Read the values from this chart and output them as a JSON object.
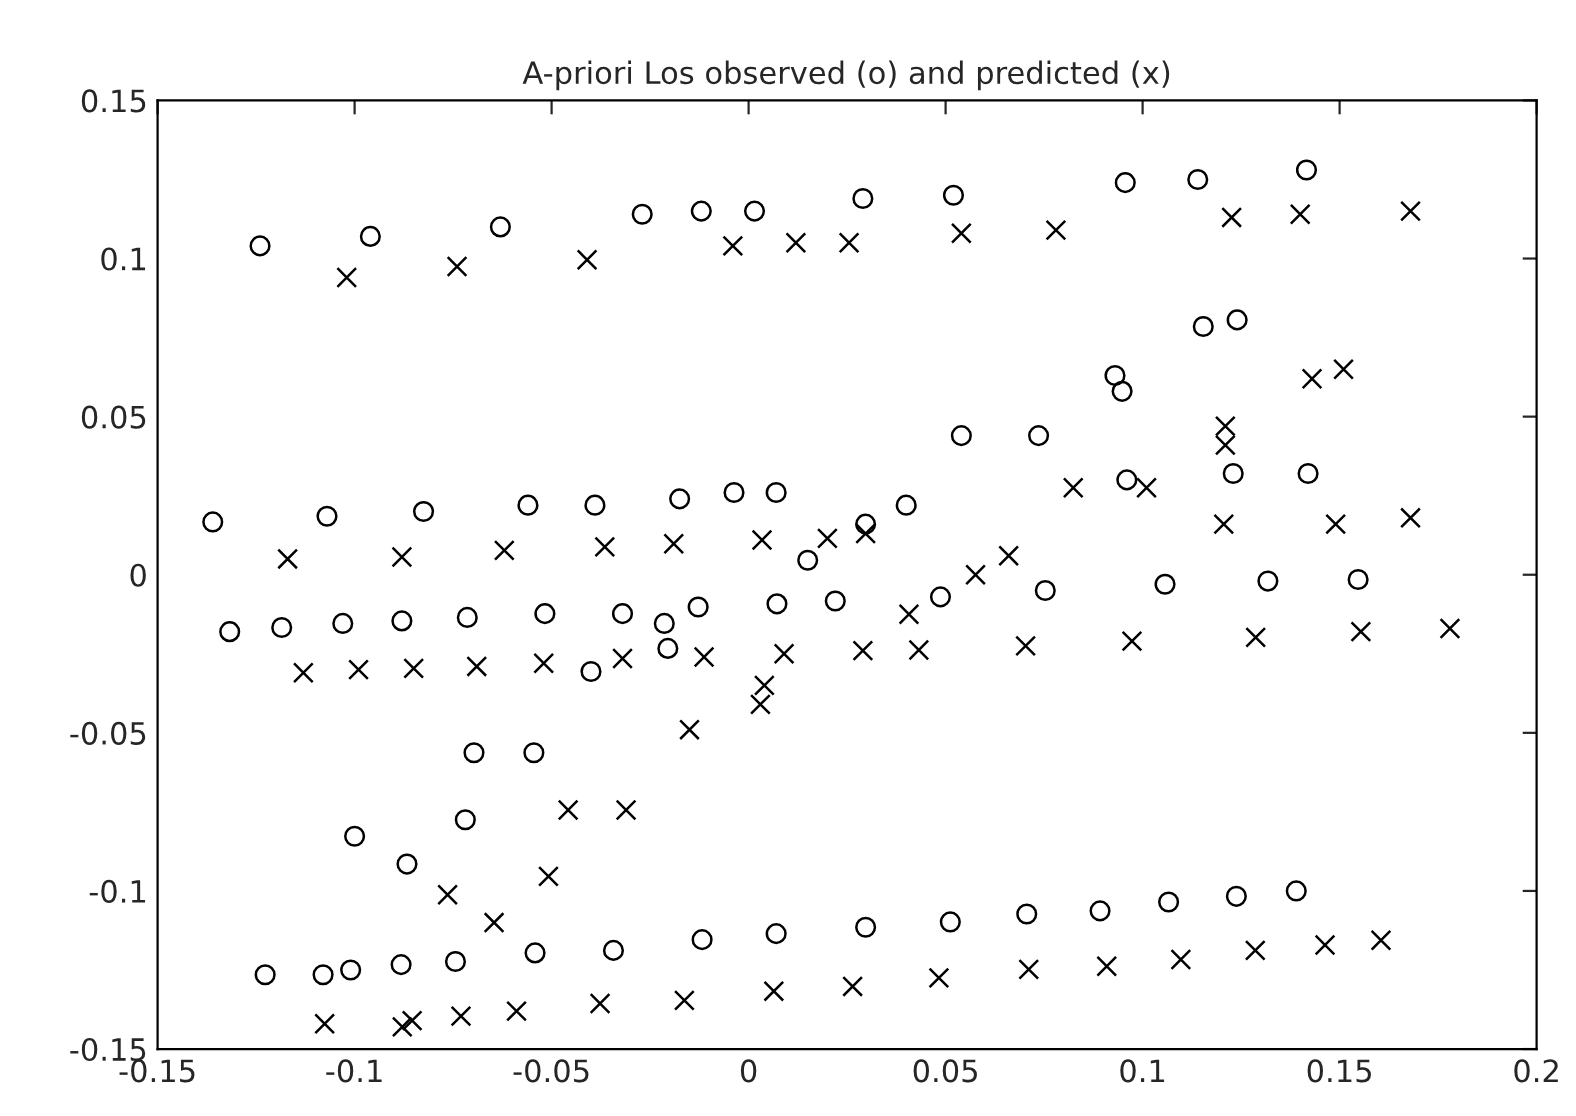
{
  "chart_data": {
    "type": "scatter",
    "title": "A-priori Los observed (o) and predicted (x)",
    "xlim": [
      -0.15,
      0.2
    ],
    "ylim": [
      -0.15,
      0.15
    ],
    "xticks": [
      -0.15,
      -0.1,
      -0.05,
      0,
      0.05,
      0.1,
      0.15,
      0.2
    ],
    "yticks": [
      -0.15,
      -0.1,
      -0.05,
      0,
      0.05,
      0.1,
      0.15
    ],
    "grid": false,
    "series": [
      {
        "color": "#000000",
        "marker": "circle",
        "x": [
          -0.124,
          -0.096,
          -0.063,
          -0.027,
          -0.012,
          0.0015,
          0.029,
          0.052,
          0.0956,
          0.114,
          0.1416,
          0.1154,
          0.124,
          0.093,
          0.0948,
          0.054,
          0.0736,
          0.123,
          0.142,
          0.096,
          0.04,
          0.0297,
          0.015,
          -0.136,
          -0.107,
          -0.0825,
          -0.056,
          -0.039,
          -0.0175,
          -0.0037,
          0.007,
          -0.1317,
          -0.1185,
          -0.103,
          -0.088,
          -0.0714,
          -0.0517,
          -0.032,
          -0.0214,
          -0.0128,
          0.0072,
          -0.04,
          -0.0205,
          0.022,
          0.0487,
          0.0753,
          0.1057,
          0.1318,
          0.1547,
          -0.0697,
          -0.0545,
          -0.0719,
          -0.1,
          -0.0867,
          -0.1227,
          -0.108,
          -0.101,
          -0.0882,
          -0.0744,
          -0.0542,
          -0.0343,
          -0.0118,
          0.007,
          0.0297,
          0.0512,
          0.0706,
          0.0892,
          0.1066,
          0.1238,
          0.139
        ],
        "values": [
          0.104,
          0.107,
          0.11,
          0.114,
          0.115,
          0.115,
          0.119,
          0.12,
          0.124,
          0.125,
          0.128,
          0.0785,
          0.0806,
          0.063,
          0.058,
          0.044,
          0.044,
          0.032,
          0.032,
          0.03,
          0.022,
          0.016,
          0.0046,
          0.0167,
          0.0185,
          0.02,
          0.022,
          0.022,
          0.024,
          0.026,
          0.026,
          -0.018,
          -0.0167,
          -0.0154,
          -0.0146,
          -0.0135,
          -0.0123,
          -0.0123,
          -0.0154,
          -0.0102,
          -0.0092,
          -0.0306,
          -0.0233,
          -0.0083,
          -0.007,
          -0.005,
          -0.003,
          -0.002,
          -0.0015,
          -0.0563,
          -0.0563,
          -0.0775,
          -0.0827,
          -0.0915,
          -0.1265,
          -0.1265,
          -0.125,
          -0.1233,
          -0.1223,
          -0.1196,
          -0.1188,
          -0.1154,
          -0.1135,
          -0.1115,
          -0.1098,
          -0.1073,
          -0.1063,
          -0.1035,
          -0.1017,
          -0.1
        ]
      },
      {
        "color": "#000000",
        "marker": "cross",
        "x": [
          -0.102,
          -0.074,
          -0.041,
          -0.004,
          0.012,
          0.0255,
          0.054,
          0.078,
          0.1226,
          0.14,
          0.168,
          0.121,
          0.121,
          0.143,
          0.151,
          0.0824,
          0.101,
          0.1206,
          0.149,
          0.168,
          0.02,
          0.0297,
          0.0576,
          0.066,
          -0.117,
          -0.088,
          -0.062,
          -0.0365,
          -0.019,
          0.0034,
          0.0407,
          -0.113,
          -0.099,
          -0.085,
          -0.069,
          -0.052,
          -0.032,
          -0.0113,
          0.009,
          0.004,
          0.003,
          -0.015,
          0.029,
          0.0432,
          0.0703,
          0.0973,
          0.1287,
          0.1554,
          0.178,
          -0.0458,
          -0.0311,
          -0.0508,
          -0.0764,
          -0.0646,
          -0.1076,
          -0.0879,
          -0.0854,
          -0.073,
          -0.0589,
          -0.0377,
          -0.0163,
          0.0064,
          0.0264,
          0.0483,
          0.0711,
          0.0909,
          0.1097,
          0.1286,
          0.1463,
          0.1605
        ],
        "values": [
          0.094,
          0.0975,
          0.0996,
          0.104,
          0.105,
          0.105,
          0.108,
          0.109,
          0.113,
          0.114,
          0.115,
          0.047,
          0.041,
          0.062,
          0.065,
          0.0275,
          0.0275,
          0.016,
          0.016,
          0.018,
          0.0115,
          0.013,
          0.0,
          0.006,
          0.005,
          0.0056,
          0.0077,
          0.0088,
          0.0098,
          0.011,
          -0.0125,
          -0.031,
          -0.03,
          -0.0296,
          -0.029,
          -0.028,
          -0.0265,
          -0.026,
          -0.025,
          -0.035,
          -0.041,
          -0.049,
          -0.024,
          -0.0238,
          -0.0225,
          -0.021,
          -0.0198,
          -0.018,
          -0.017,
          -0.0744,
          -0.0744,
          -0.0954,
          -0.1012,
          -0.11,
          -0.142,
          -0.143,
          -0.141,
          -0.1396,
          -0.138,
          -0.1356,
          -0.1346,
          -0.1317,
          -0.1302,
          -0.1275,
          -0.1248,
          -0.1238,
          -0.1217,
          -0.1188,
          -0.1171,
          -0.1156
        ]
      }
    ]
  }
}
